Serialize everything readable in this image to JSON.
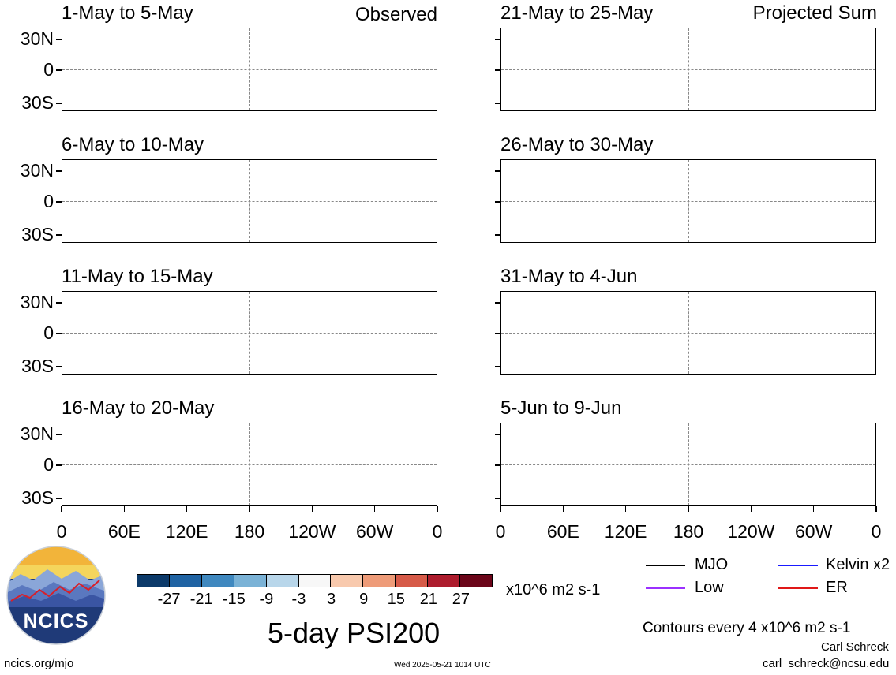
{
  "title": "5-day PSI200",
  "left_column_label": "Observed",
  "right_column_label": "Projected Sum",
  "panels_left": [
    {
      "period": "1-May to 5-May"
    },
    {
      "period": "6-May to 10-May"
    },
    {
      "period": "11-May to 15-May"
    },
    {
      "period": "16-May to 20-May"
    }
  ],
  "panels_right": [
    {
      "period": "21-May to 25-May"
    },
    {
      "period": "26-May to 30-May"
    },
    {
      "period": "31-May to 4-Jun"
    },
    {
      "period": "5-Jun to 9-Jun"
    }
  ],
  "lat_labels": [
    "30N",
    "0",
    "30S"
  ],
  "lon_labels": [
    "0",
    "60E",
    "120E",
    "180",
    "120W",
    "60W",
    "0"
  ],
  "colorbar": {
    "labels": [
      "-27",
      "-21",
      "-15",
      "-9",
      "-3",
      "3",
      "9",
      "15",
      "21",
      "27"
    ],
    "colors": [
      "#0c3a6a",
      "#1f63a3",
      "#3f88bf",
      "#7ab2d6",
      "#b8d6ea",
      "#f7f7f7",
      "#f8c9ad",
      "#ee9b78",
      "#d65a48",
      "#ad1c2d",
      "#6b0519"
    ],
    "units": "x10^6 m2 s-1"
  },
  "legend": {
    "mjo": "MJO",
    "low": "Low",
    "kelvin": "Kelvin x2",
    "er": "ER",
    "colors": {
      "mjo": "#000000",
      "low": "#9b30ff",
      "kelvin": "#1a1aff",
      "er": "#e01818"
    }
  },
  "contour_note": "Contours every 4 x10^6 m2 s-1",
  "logo": {
    "text": "NCICS"
  },
  "footer": {
    "url": "ncics.org/mjo",
    "timestamp": "Wed 2025-05-21 1014 UTC",
    "author": "Carl Schreck",
    "email": "carl_schreck@ncsu.edu"
  }
}
